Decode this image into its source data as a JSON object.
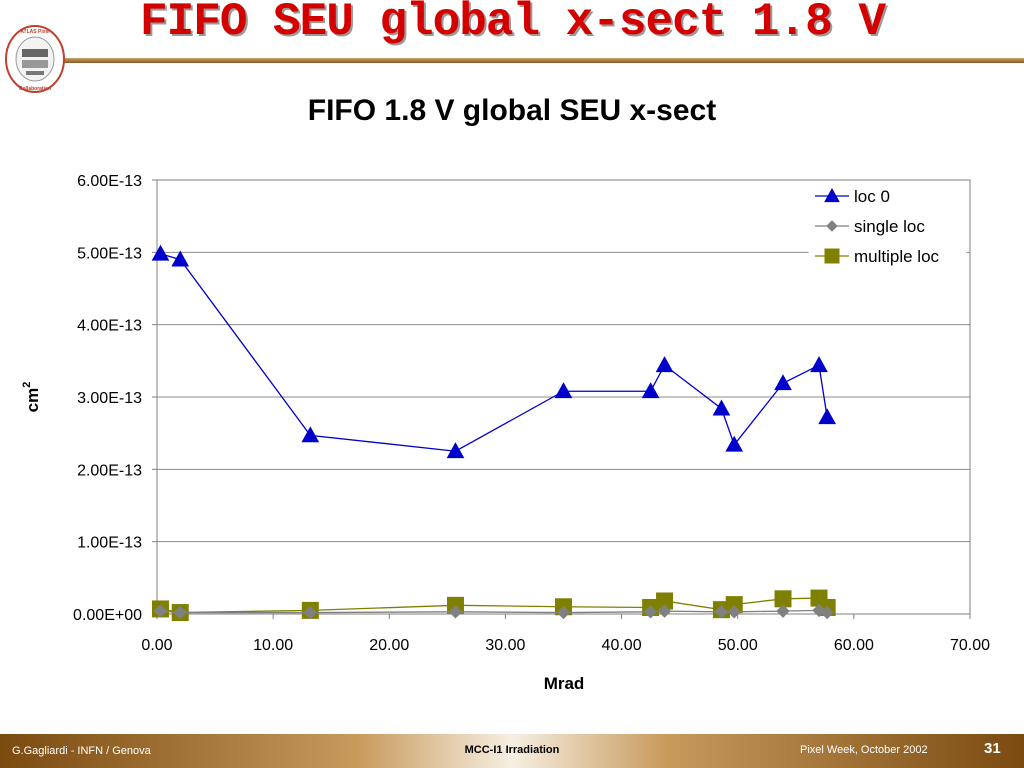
{
  "slide": {
    "title": "FIFO SEU global x-sect 1.8 V",
    "logo_text": "ATLAS Pixel Detector Collaboration",
    "footer_left": "G.Gagliardi - INFN / Genova",
    "footer_center": "MCC-I1 Irradiation",
    "footer_right": "Pixel Week, October 2002",
    "page_number": "31"
  },
  "chart_data": {
    "type": "line",
    "title": "FIFO 1.8 V global SEU x-sect",
    "xlabel": "Mrad",
    "ylabel": "cm",
    "ylabel_superscript": "2",
    "xlim": [
      0,
      70
    ],
    "ylim": [
      0,
      6e-13
    ],
    "xticks": [
      "0.00",
      "10.00",
      "20.00",
      "30.00",
      "40.00",
      "50.00",
      "60.00",
      "70.00"
    ],
    "yticks": [
      "0.00E+00",
      "1.00E-13",
      "2.00E-13",
      "3.00E-13",
      "4.00E-13",
      "5.00E-13",
      "6.00E-13"
    ],
    "grid": "horizontal",
    "legend": "top-right",
    "series": [
      {
        "name": "loc 0",
        "color": "#0000cc",
        "marker": "triangle",
        "points": [
          [
            0.3,
            4.98e-13
          ],
          [
            2.0,
            4.9e-13
          ],
          [
            13.2,
            2.47e-13
          ],
          [
            25.7,
            2.25e-13
          ],
          [
            35.0,
            3.08e-13
          ],
          [
            42.5,
            3.08e-13
          ],
          [
            43.7,
            3.44e-13
          ],
          [
            48.6,
            2.84e-13
          ],
          [
            49.7,
            2.34e-13
          ],
          [
            53.9,
            3.19e-13
          ],
          [
            57.0,
            3.44e-13
          ],
          [
            57.7,
            2.72e-13
          ]
        ]
      },
      {
        "name": "single loc",
        "color": "#808080",
        "marker": "diamond",
        "points": [
          [
            0.3,
            4e-15
          ],
          [
            2.0,
            2e-15
          ],
          [
            13.2,
            2e-15
          ],
          [
            25.7,
            3e-15
          ],
          [
            35.0,
            2e-15
          ],
          [
            42.5,
            3e-15
          ],
          [
            43.7,
            4e-15
          ],
          [
            48.6,
            3e-15
          ],
          [
            49.7,
            3e-15
          ],
          [
            53.9,
            4e-15
          ],
          [
            57.0,
            5e-15
          ],
          [
            57.7,
            2e-15
          ]
        ]
      },
      {
        "name": "multiple loc",
        "color": "#808000",
        "marker": "square",
        "points": [
          [
            0.3,
            7e-15
          ],
          [
            2.0,
            2e-15
          ],
          [
            13.2,
            5e-15
          ],
          [
            25.7,
            1.2e-14
          ],
          [
            35.0,
            1e-14
          ],
          [
            42.5,
            9e-15
          ],
          [
            43.7,
            1.8e-14
          ],
          [
            48.6,
            6e-15
          ],
          [
            49.7,
            1.3e-14
          ],
          [
            53.9,
            2.1e-14
          ],
          [
            57.0,
            2.2e-14
          ],
          [
            57.7,
            9e-15
          ]
        ]
      }
    ]
  }
}
